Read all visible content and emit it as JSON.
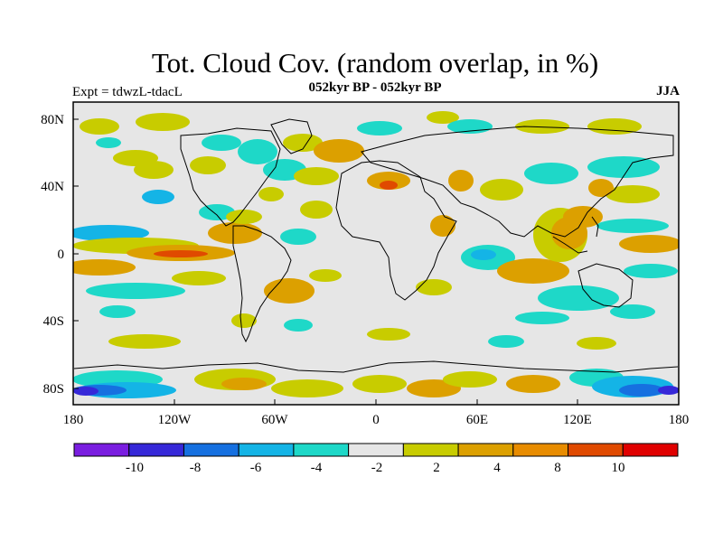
{
  "title": "Tot. Cloud Cov. (random overlap, in %)",
  "subtitle": "052kyr BP - 052kyr BP",
  "left_note": "Expt = tdwzL-tdacL",
  "season": "JJA",
  "x_ticks": [
    "180",
    "120W",
    "60W",
    "0",
    "60E",
    "120E",
    "180"
  ],
  "y_ticks": [
    "80N",
    "40N",
    "0",
    "40S",
    "80S"
  ],
  "colorbar": {
    "colors": [
      "#7a1ee0",
      "#3628d8",
      "#1670e0",
      "#14b4e6",
      "#1ed8c8",
      "#e6e6e6",
      "#c8cc00",
      "#dca000",
      "#e88c00",
      "#e04a00",
      "#e00000"
    ],
    "labels": [
      "-10",
      "-8",
      "-6",
      "-4",
      "-2",
      "2",
      "4",
      "8",
      "10"
    ]
  },
  "map": {
    "background": "#e6e6e6",
    "coastline_color": "#000000"
  }
}
